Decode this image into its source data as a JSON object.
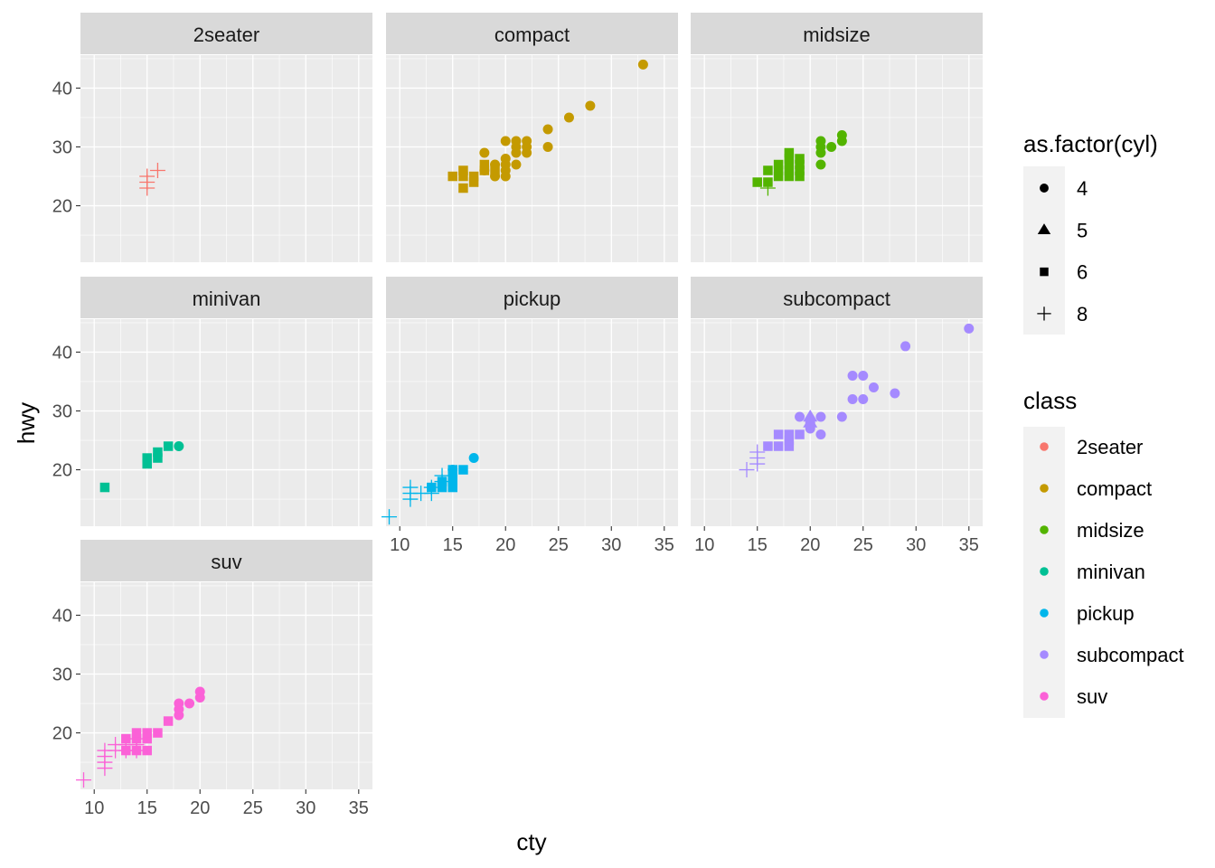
{
  "chart_data": {
    "type": "scatter",
    "xlabel": "cty",
    "ylabel": "hwy",
    "xlim": [
      8.7,
      36.3
    ],
    "ylim": [
      10.4,
      45.6
    ],
    "x_ticks": [
      10,
      15,
      20,
      25,
      30,
      35
    ],
    "y_ticks": [
      20,
      30,
      40
    ],
    "legend_shape": {
      "title": "as.factor(cyl)",
      "entries": [
        {
          "label": "4",
          "shape": "circle"
        },
        {
          "label": "5",
          "shape": "triangle"
        },
        {
          "label": "6",
          "shape": "square"
        },
        {
          "label": "8",
          "shape": "plus"
        }
      ]
    },
    "legend_color": {
      "title": "class",
      "entries": [
        {
          "label": "2seater",
          "color": "#F8766D"
        },
        {
          "label": "compact",
          "color": "#C49A00"
        },
        {
          "label": "midsize",
          "color": "#53B400"
        },
        {
          "label": "minivan",
          "color": "#00C094"
        },
        {
          "label": "pickup",
          "color": "#00B6EB"
        },
        {
          "label": "subcompact",
          "color": "#A58AFF"
        },
        {
          "label": "suv",
          "color": "#FB61D7"
        }
      ]
    },
    "panels": [
      {
        "title": "2seater",
        "color": "#F8766D",
        "points": [
          {
            "cty": 15,
            "hwy": 23,
            "cyl": 8
          },
          {
            "cty": 15,
            "hwy": 24,
            "cyl": 8
          },
          {
            "cty": 15,
            "hwy": 25,
            "cyl": 8
          },
          {
            "cty": 16,
            "hwy": 26,
            "cyl": 8
          }
        ]
      },
      {
        "title": "compact",
        "color": "#C49A00",
        "points": [
          {
            "cty": 15,
            "hwy": 25,
            "cyl": 6
          },
          {
            "cty": 16,
            "hwy": 23,
            "cyl": 6
          },
          {
            "cty": 16,
            "hwy": 25,
            "cyl": 6
          },
          {
            "cty": 16,
            "hwy": 26,
            "cyl": 6
          },
          {
            "cty": 17,
            "hwy": 24,
            "cyl": 6
          },
          {
            "cty": 17,
            "hwy": 25,
            "cyl": 6
          },
          {
            "cty": 18,
            "hwy": 26,
            "cyl": 6
          },
          {
            "cty": 18,
            "hwy": 27,
            "cyl": 6
          },
          {
            "cty": 19,
            "hwy": 26,
            "cyl": 6
          },
          {
            "cty": 18,
            "hwy": 29,
            "cyl": 4
          },
          {
            "cty": 18,
            "hwy": 26,
            "cyl": 4
          },
          {
            "cty": 19,
            "hwy": 27,
            "cyl": 4
          },
          {
            "cty": 19,
            "hwy": 25,
            "cyl": 4
          },
          {
            "cty": 20,
            "hwy": 26,
            "cyl": 4
          },
          {
            "cty": 20,
            "hwy": 27,
            "cyl": 4
          },
          {
            "cty": 20,
            "hwy": 28,
            "cyl": 4
          },
          {
            "cty": 20,
            "hwy": 25,
            "cyl": 4
          },
          {
            "cty": 20,
            "hwy": 31,
            "cyl": 4
          },
          {
            "cty": 21,
            "hwy": 29,
            "cyl": 4
          },
          {
            "cty": 21,
            "hwy": 30,
            "cyl": 4
          },
          {
            "cty": 21,
            "hwy": 31,
            "cyl": 4
          },
          {
            "cty": 21,
            "hwy": 27,
            "cyl": 4
          },
          {
            "cty": 22,
            "hwy": 29,
            "cyl": 4
          },
          {
            "cty": 22,
            "hwy": 30,
            "cyl": 4
          },
          {
            "cty": 22,
            "hwy": 31,
            "cyl": 4
          },
          {
            "cty": 24,
            "hwy": 30,
            "cyl": 4
          },
          {
            "cty": 24,
            "hwy": 33,
            "cyl": 4
          },
          {
            "cty": 26,
            "hwy": 35,
            "cyl": 4
          },
          {
            "cty": 28,
            "hwy": 37,
            "cyl": 4
          },
          {
            "cty": 33,
            "hwy": 44,
            "cyl": 4
          }
        ]
      },
      {
        "title": "midsize",
        "color": "#53B400",
        "points": [
          {
            "cty": 15,
            "hwy": 24,
            "cyl": 6
          },
          {
            "cty": 16,
            "hwy": 24,
            "cyl": 6
          },
          {
            "cty": 16,
            "hwy": 26,
            "cyl": 6
          },
          {
            "cty": 17,
            "hwy": 25,
            "cyl": 6
          },
          {
            "cty": 17,
            "hwy": 26,
            "cyl": 6
          },
          {
            "cty": 17,
            "hwy": 27,
            "cyl": 6
          },
          {
            "cty": 18,
            "hwy": 25,
            "cyl": 6
          },
          {
            "cty": 18,
            "hwy": 26,
            "cyl": 6
          },
          {
            "cty": 18,
            "hwy": 27,
            "cyl": 6
          },
          {
            "cty": 18,
            "hwy": 28,
            "cyl": 6
          },
          {
            "cty": 18,
            "hwy": 29,
            "cyl": 6
          },
          {
            "cty": 19,
            "hwy": 25,
            "cyl": 6
          },
          {
            "cty": 19,
            "hwy": 26,
            "cyl": 6
          },
          {
            "cty": 19,
            "hwy": 27,
            "cyl": 6
          },
          {
            "cty": 19,
            "hwy": 28,
            "cyl": 6
          },
          {
            "cty": 16,
            "hwy": 23,
            "cyl": 8
          },
          {
            "cty": 21,
            "hwy": 27,
            "cyl": 4
          },
          {
            "cty": 21,
            "hwy": 29,
            "cyl": 4
          },
          {
            "cty": 21,
            "hwy": 30,
            "cyl": 4
          },
          {
            "cty": 21,
            "hwy": 31,
            "cyl": 4
          },
          {
            "cty": 22,
            "hwy": 30,
            "cyl": 4
          },
          {
            "cty": 23,
            "hwy": 31,
            "cyl": 4
          },
          {
            "cty": 23,
            "hwy": 32,
            "cyl": 4
          }
        ]
      },
      {
        "title": "minivan",
        "color": "#00C094",
        "points": [
          {
            "cty": 11,
            "hwy": 17,
            "cyl": 6
          },
          {
            "cty": 15,
            "hwy": 21,
            "cyl": 6
          },
          {
            "cty": 15,
            "hwy": 22,
            "cyl": 6
          },
          {
            "cty": 16,
            "hwy": 22,
            "cyl": 6
          },
          {
            "cty": 16,
            "hwy": 23,
            "cyl": 6
          },
          {
            "cty": 17,
            "hwy": 24,
            "cyl": 6
          },
          {
            "cty": 18,
            "hwy": 24,
            "cyl": 4
          }
        ]
      },
      {
        "title": "pickup",
        "color": "#00B6EB",
        "points": [
          {
            "cty": 9,
            "hwy": 12,
            "cyl": 8
          },
          {
            "cty": 11,
            "hwy": 15,
            "cyl": 8
          },
          {
            "cty": 11,
            "hwy": 16,
            "cyl": 8
          },
          {
            "cty": 11,
            "hwy": 17,
            "cyl": 8
          },
          {
            "cty": 12,
            "hwy": 16,
            "cyl": 8
          },
          {
            "cty": 13,
            "hwy": 16,
            "cyl": 8
          },
          {
            "cty": 13,
            "hwy": 17,
            "cyl": 8
          },
          {
            "cty": 14,
            "hwy": 18,
            "cyl": 8
          },
          {
            "cty": 14,
            "hwy": 19,
            "cyl": 8
          },
          {
            "cty": 13,
            "hwy": 17,
            "cyl": 6
          },
          {
            "cty": 14,
            "hwy": 17,
            "cyl": 6
          },
          {
            "cty": 14,
            "hwy": 18,
            "cyl": 6
          },
          {
            "cty": 15,
            "hwy": 17,
            "cyl": 6
          },
          {
            "cty": 15,
            "hwy": 18,
            "cyl": 6
          },
          {
            "cty": 15,
            "hwy": 19,
            "cyl": 6
          },
          {
            "cty": 15,
            "hwy": 20,
            "cyl": 6
          },
          {
            "cty": 16,
            "hwy": 20,
            "cyl": 6
          },
          {
            "cty": 15,
            "hwy": 20,
            "cyl": 4
          },
          {
            "cty": 17,
            "hwy": 22,
            "cyl": 4
          }
        ]
      },
      {
        "title": "subcompact",
        "color": "#A58AFF",
        "points": [
          {
            "cty": 14,
            "hwy": 20,
            "cyl": 8
          },
          {
            "cty": 15,
            "hwy": 21,
            "cyl": 8
          },
          {
            "cty": 15,
            "hwy": 22,
            "cyl": 8
          },
          {
            "cty": 15,
            "hwy": 23,
            "cyl": 8
          },
          {
            "cty": 16,
            "hwy": 24,
            "cyl": 6
          },
          {
            "cty": 17,
            "hwy": 24,
            "cyl": 6
          },
          {
            "cty": 17,
            "hwy": 26,
            "cyl": 6
          },
          {
            "cty": 18,
            "hwy": 24,
            "cyl": 6
          },
          {
            "cty": 18,
            "hwy": 25,
            "cyl": 6
          },
          {
            "cty": 18,
            "hwy": 26,
            "cyl": 6
          },
          {
            "cty": 19,
            "hwy": 26,
            "cyl": 6
          },
          {
            "cty": 20,
            "hwy": 28,
            "cyl": 5
          },
          {
            "cty": 20,
            "hwy": 29,
            "cyl": 5
          },
          {
            "cty": 19,
            "hwy": 29,
            "cyl": 4
          },
          {
            "cty": 20,
            "hwy": 27,
            "cyl": 4
          },
          {
            "cty": 20,
            "hwy": 28,
            "cyl": 4
          },
          {
            "cty": 21,
            "hwy": 26,
            "cyl": 4
          },
          {
            "cty": 21,
            "hwy": 29,
            "cyl": 4
          },
          {
            "cty": 23,
            "hwy": 29,
            "cyl": 4
          },
          {
            "cty": 24,
            "hwy": 32,
            "cyl": 4
          },
          {
            "cty": 24,
            "hwy": 36,
            "cyl": 4
          },
          {
            "cty": 25,
            "hwy": 32,
            "cyl": 4
          },
          {
            "cty": 25,
            "hwy": 36,
            "cyl": 4
          },
          {
            "cty": 26,
            "hwy": 34,
            "cyl": 4
          },
          {
            "cty": 28,
            "hwy": 33,
            "cyl": 4
          },
          {
            "cty": 29,
            "hwy": 41,
            "cyl": 4
          },
          {
            "cty": 35,
            "hwy": 44,
            "cyl": 4
          }
        ]
      },
      {
        "title": "suv",
        "color": "#FB61D7",
        "points": [
          {
            "cty": 9,
            "hwy": 12,
            "cyl": 8
          },
          {
            "cty": 11,
            "hwy": 14,
            "cyl": 8
          },
          {
            "cty": 11,
            "hwy": 15,
            "cyl": 8
          },
          {
            "cty": 11,
            "hwy": 16,
            "cyl": 8
          },
          {
            "cty": 11,
            "hwy": 17,
            "cyl": 8
          },
          {
            "cty": 12,
            "hwy": 17,
            "cyl": 8
          },
          {
            "cty": 12,
            "hwy": 18,
            "cyl": 8
          },
          {
            "cty": 13,
            "hwy": 17,
            "cyl": 8
          },
          {
            "cty": 13,
            "hwy": 18,
            "cyl": 8
          },
          {
            "cty": 14,
            "hwy": 17,
            "cyl": 8
          },
          {
            "cty": 14,
            "hwy": 18,
            "cyl": 8
          },
          {
            "cty": 14,
            "hwy": 19,
            "cyl": 8
          },
          {
            "cty": 13,
            "hwy": 17,
            "cyl": 6
          },
          {
            "cty": 13,
            "hwy": 19,
            "cyl": 6
          },
          {
            "cty": 14,
            "hwy": 17,
            "cyl": 6
          },
          {
            "cty": 14,
            "hwy": 19,
            "cyl": 6
          },
          {
            "cty": 14,
            "hwy": 20,
            "cyl": 6
          },
          {
            "cty": 15,
            "hwy": 17,
            "cyl": 6
          },
          {
            "cty": 15,
            "hwy": 19,
            "cyl": 6
          },
          {
            "cty": 15,
            "hwy": 20,
            "cyl": 6
          },
          {
            "cty": 16,
            "hwy": 20,
            "cyl": 6
          },
          {
            "cty": 17,
            "hwy": 22,
            "cyl": 6
          },
          {
            "cty": 18,
            "hwy": 23,
            "cyl": 4
          },
          {
            "cty": 18,
            "hwy": 24,
            "cyl": 4
          },
          {
            "cty": 18,
            "hwy": 25,
            "cyl": 4
          },
          {
            "cty": 19,
            "hwy": 25,
            "cyl": 4
          },
          {
            "cty": 20,
            "hwy": 26,
            "cyl": 4
          },
          {
            "cty": 20,
            "hwy": 27,
            "cyl": 4
          }
        ]
      }
    ]
  }
}
